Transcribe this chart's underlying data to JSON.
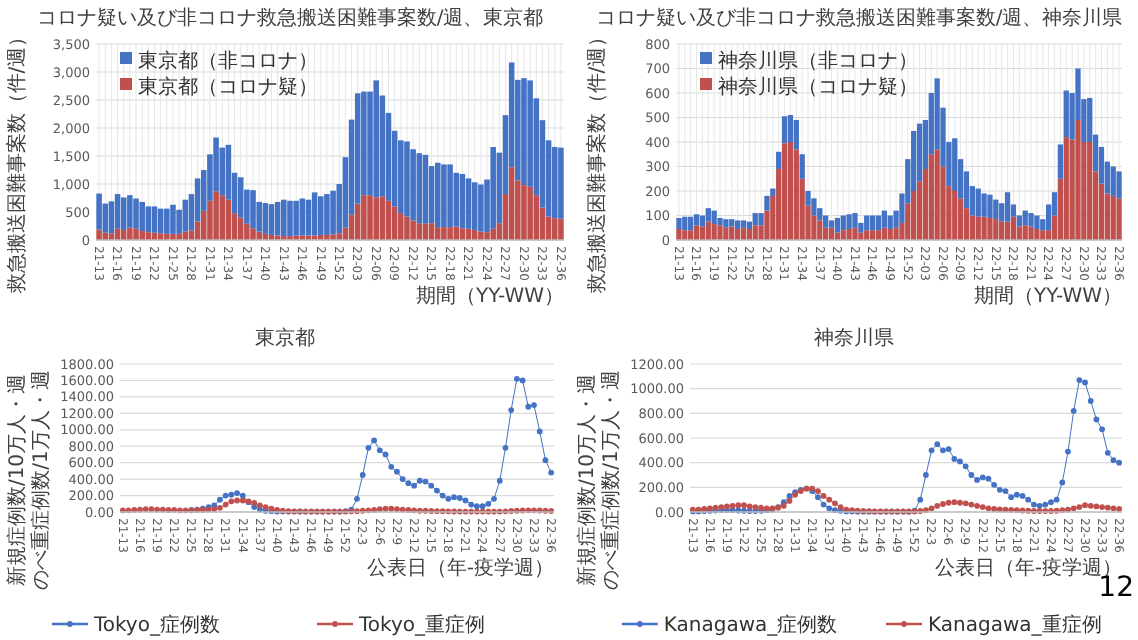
{
  "chart_data": [
    {
      "type": "bar",
      "title": "コロナ疑い及び非コロナ救急搬送困難事案数/週、東京都",
      "ylabel": "救急搬送困難事案数（件/週）",
      "xlabel": "期間（YY-WW）",
      "stacked": true,
      "grid": true,
      "legend": "top left",
      "categories": [
        "21-13",
        null,
        null,
        "21-16",
        null,
        null,
        "21-19",
        null,
        null,
        "21-22",
        null,
        null,
        "21-25",
        null,
        null,
        "21-28",
        null,
        null,
        "21-31",
        null,
        null,
        "21-34",
        null,
        null,
        "21-37",
        null,
        null,
        "21-40",
        null,
        null,
        "21-43",
        null,
        null,
        "21-46",
        null,
        null,
        "21-49",
        null,
        null,
        "21-52",
        null,
        null,
        "22-03",
        null,
        null,
        "22-06",
        null,
        null,
        "22-09",
        null,
        null,
        "22-12",
        null,
        null,
        "22-15",
        null,
        null,
        "22-18",
        null,
        null,
        "22-21",
        null,
        null,
        "22-24",
        null,
        null,
        "22-27",
        null,
        null,
        "22-30",
        null,
        null,
        "22-33",
        null,
        null,
        "22-36"
      ],
      "ylim": [
        0,
        3500
      ],
      "yticks": [
        0,
        {
          "value": 500,
          "label": "500"
        },
        {
          "value": 1000,
          "label": "1,000"
        },
        {
          "value": 1500,
          "label": "1,500"
        },
        {
          "value": 2000,
          "label": "2,000"
        },
        {
          "value": 2500,
          "label": "2,500"
        },
        {
          "value": 3000,
          "label": "3,000"
        },
        {
          "value": 3500,
          "label": "3,500"
        }
      ],
      "series": [
        {
          "name": "東京都（コロナ疑）",
          "color": "#c0504d",
          "values": [
            190,
            130,
            120,
            200,
            180,
            220,
            200,
            160,
            140,
            130,
            120,
            110,
            110,
            110,
            150,
            170,
            330,
            520,
            700,
            870,
            800,
            720,
            480,
            400,
            290,
            210,
            150,
            110,
            90,
            80,
            70,
            70,
            80,
            80,
            80,
            80,
            90,
            90,
            100,
            120,
            220,
            450,
            650,
            800,
            800,
            760,
            780,
            700,
            600,
            480,
            420,
            350,
            300,
            290,
            300,
            230,
            230,
            230,
            240,
            210,
            200,
            180,
            150,
            140,
            200,
            300,
            820,
            1300,
            1060,
            980,
            950,
            800,
            580,
            420,
            390,
            380
          ]
        },
        {
          "name": "東京都（非コロナ）",
          "color": "#4472c4",
          "values": [
            640,
            520,
            570,
            620,
            580,
            580,
            540,
            520,
            460,
            470,
            440,
            450,
            520,
            430,
            570,
            650,
            770,
            730,
            830,
            960,
            850,
            980,
            720,
            720,
            610,
            680,
            530,
            550,
            550,
            600,
            650,
            630,
            620,
            660,
            640,
            770,
            690,
            730,
            780,
            880,
            1260,
            1700,
            1970,
            1850,
            1850,
            2090,
            1800,
            1570,
            1350,
            1300,
            1340,
            1270,
            1250,
            1230,
            1020,
            1150,
            1120,
            1120,
            960,
            970,
            900,
            850,
            840,
            940,
            1460,
            1260,
            1410,
            1870,
            1800,
            1910,
            1900,
            1730,
            1560,
            1360,
            1270,
            1270
          ]
        }
      ]
    },
    {
      "type": "bar",
      "title": "コロナ疑い及び非コロナ救急搬送困難事案数/週、神奈川県",
      "ylabel": "救急搬送困難事案数（件/週）",
      "xlabel": "期間（YY-WW）",
      "stacked": true,
      "grid": true,
      "legend": "top left",
      "categories": [
        "21-13",
        null,
        null,
        "21-16",
        null,
        null,
        "21-19",
        null,
        null,
        "21-22",
        null,
        null,
        "21-25",
        null,
        null,
        "21-28",
        null,
        null,
        "21-31",
        null,
        null,
        "21-34",
        null,
        null,
        "21-37",
        null,
        null,
        "21-40",
        null,
        null,
        "21-43",
        null,
        null,
        "21-46",
        null,
        null,
        "21-49",
        null,
        null,
        "21-52",
        null,
        null,
        "22-03",
        null,
        null,
        "22-06",
        null,
        null,
        "22-09",
        null,
        null,
        "22-12",
        null,
        null,
        "22-15",
        null,
        null,
        "22-18",
        null,
        null,
        "22-21",
        null,
        null,
        "22-24",
        null,
        null,
        "22-27",
        null,
        null,
        "22-30",
        null,
        null,
        "22-33",
        null,
        null,
        "22-36"
      ],
      "ylim": [
        0,
        800
      ],
      "yticks": [
        0,
        100,
        200,
        300,
        400,
        500,
        600,
        700,
        800
      ],
      "series": [
        {
          "name": "神奈川県（コロナ疑）",
          "color": "#c0504d",
          "values": [
            45,
            40,
            40,
            60,
            55,
            75,
            65,
            60,
            50,
            55,
            45,
            50,
            45,
            60,
            60,
            120,
            180,
            290,
            395,
            400,
            370,
            250,
            140,
            100,
            80,
            50,
            50,
            30,
            40,
            45,
            50,
            30,
            40,
            40,
            40,
            50,
            45,
            50,
            70,
            150,
            200,
            240,
            290,
            350,
            370,
            300,
            220,
            200,
            170,
            130,
            100,
            95,
            95,
            90,
            85,
            75,
            75,
            95,
            55,
            60,
            55,
            45,
            40,
            40,
            100,
            250,
            420,
            410,
            490,
            400,
            400,
            280,
            230,
            190,
            180,
            170
          ]
        },
        {
          "name": "神奈川県（非コロナ）",
          "color": "#4472c4",
          "values": [
            45,
            55,
            55,
            45,
            45,
            55,
            55,
            30,
            35,
            30,
            35,
            30,
            30,
            50,
            50,
            60,
            30,
            70,
            110,
            110,
            120,
            100,
            60,
            70,
            50,
            50,
            30,
            60,
            60,
            60,
            60,
            40,
            60,
            60,
            60,
            70,
            55,
            70,
            120,
            180,
            245,
            235,
            200,
            250,
            290,
            240,
            180,
            215,
            160,
            150,
            120,
            115,
            95,
            95,
            80,
            75,
            120,
            50,
            45,
            60,
            55,
            55,
            45,
            105,
            95,
            140,
            190,
            190,
            210,
            175,
            180,
            150,
            150,
            130,
            120,
            110
          ]
        }
      ]
    },
    {
      "type": "line",
      "title": "東京都",
      "ylabel": "新規症例数/10万人・週のべ重症例数/1万人・週",
      "xlabel": "公表日（年-疫学週）",
      "grid": "y",
      "legend": "bottom",
      "marker": "circle",
      "categories": [
        "21-13",
        null,
        null,
        "21-16",
        null,
        null,
        "21-19",
        null,
        null,
        "21-22",
        null,
        null,
        "21-25",
        null,
        null,
        "21-28",
        null,
        null,
        "21-31",
        null,
        null,
        "21-34",
        null,
        null,
        "21-37",
        null,
        null,
        "21-40",
        null,
        null,
        "21-43",
        null,
        null,
        "21-46",
        null,
        null,
        "21-49",
        null,
        null,
        "21-52",
        null,
        null,
        "22-3",
        null,
        null,
        "22-6",
        null,
        null,
        "22-9",
        null,
        null,
        "22-12",
        null,
        null,
        "22-15",
        null,
        null,
        "22-18",
        null,
        null,
        "22-21",
        null,
        null,
        "22-24",
        null,
        null,
        "22-27",
        null,
        null,
        "22-30",
        null,
        null,
        "22-33",
        null,
        null,
        "22-36"
      ],
      "ylim": [
        0,
        1800
      ],
      "yticks": [
        {
          "value": 0,
          "label": "0.00"
        },
        {
          "value": 200,
          "label": "200.00"
        },
        {
          "value": 400,
          "label": "400.00"
        },
        {
          "value": 600,
          "label": "600.00"
        },
        {
          "value": 800,
          "label": "800.00"
        },
        {
          "value": 1000,
          "label": "1000.00"
        },
        {
          "value": 1200,
          "label": "1200.00"
        },
        {
          "value": 1400,
          "label": "1400.00"
        },
        {
          "value": 1600,
          "label": "1600.00"
        },
        {
          "value": 1800,
          "label": "1800.00"
        }
      ],
      "series": [
        {
          "name": "Tokyo_症例数",
          "color": "#4472c4",
          "values": [
            null,
            null,
            null,
            null,
            null,
            null,
            null,
            null,
            null,
            null,
            null,
            null,
            25,
            30,
            40,
            60,
            80,
            150,
            200,
            210,
            230,
            200,
            120,
            60,
            30,
            15,
            10,
            5,
            5,
            5,
            5,
            5,
            5,
            5,
            5,
            5,
            5,
            5,
            5,
            10,
            30,
            160,
            450,
            780,
            870,
            750,
            700,
            550,
            490,
            400,
            350,
            320,
            380,
            370,
            320,
            260,
            200,
            160,
            180,
            170,
            140,
            90,
            70,
            70,
            100,
            160,
            380,
            780,
            1240,
            1620,
            1600,
            1280,
            1300,
            980,
            630,
            480
          ]
        },
        {
          "name": "Tokyo_重症例",
          "color": "#c0504d",
          "values": [
            20,
            20,
            25,
            30,
            35,
            35,
            30,
            30,
            25,
            25,
            20,
            20,
            20,
            25,
            25,
            30,
            35,
            50,
            90,
            130,
            140,
            140,
            130,
            110,
            80,
            60,
            40,
            25,
            15,
            10,
            8,
            6,
            5,
            5,
            5,
            5,
            5,
            5,
            5,
            5,
            8,
            10,
            15,
            20,
            25,
            35,
            40,
            40,
            35,
            30,
            25,
            20,
            15,
            15,
            12,
            10,
            10,
            8,
            6,
            5,
            5,
            5,
            5,
            5,
            5,
            5,
            5,
            8,
            12,
            15,
            18,
            20,
            20,
            18,
            15,
            12
          ]
        }
      ]
    },
    {
      "type": "line",
      "title": "神奈川県",
      "ylabel": "新規症例数/10万人・週のべ重症例数/1万人・週",
      "xlabel": "公表日（年-疫学週）",
      "grid": "y",
      "legend": "bottom",
      "marker": "circle",
      "annotations": [
        "12"
      ],
      "categories": [
        "21-13",
        null,
        null,
        "21-16",
        null,
        null,
        "21-19",
        null,
        null,
        "21-22",
        null,
        null,
        "21-25",
        null,
        null,
        "21-28",
        null,
        null,
        "21-31",
        null,
        null,
        "21-34",
        null,
        null,
        "21-37",
        null,
        null,
        "21-40",
        null,
        null,
        "21-43",
        null,
        null,
        "21-46",
        null,
        null,
        "21-49",
        null,
        null,
        "21-52",
        null,
        null,
        "22-3",
        null,
        null,
        "22-6",
        null,
        null,
        "22-9",
        null,
        null,
        "22-12",
        null,
        null,
        "22-15",
        null,
        null,
        "22-18",
        null,
        null,
        "22-21",
        null,
        null,
        "22-24",
        null,
        null,
        "22-27",
        null,
        null,
        "22-30",
        null,
        null,
        "22-33",
        null,
        null,
        "22-36"
      ],
      "ylim": [
        0,
        1200
      ],
      "yticks": [
        {
          "value": 0,
          "label": "0.00"
        },
        {
          "value": 200,
          "label": "200.00"
        },
        {
          "value": 400,
          "label": "400.00"
        },
        {
          "value": 600,
          "label": "600.00"
        },
        {
          "value": 800,
          "label": "800.00"
        },
        {
          "value": 1000,
          "label": "1000.00"
        },
        {
          "value": 1200,
          "label": "1200.00"
        }
      ],
      "series": [
        {
          "name": "Kanagawa_症例数",
          "color": "#4472c4",
          "values": [
            5,
            5,
            8,
            10,
            12,
            15,
            15,
            15,
            12,
            10,
            8,
            8,
            10,
            15,
            20,
            40,
            80,
            130,
            160,
            180,
            190,
            170,
            120,
            60,
            30,
            15,
            10,
            5,
            5,
            3,
            3,
            3,
            3,
            3,
            3,
            3,
            3,
            3,
            3,
            10,
            100,
            300,
            500,
            550,
            500,
            510,
            430,
            410,
            370,
            300,
            260,
            280,
            270,
            220,
            180,
            170,
            120,
            140,
            130,
            100,
            60,
            50,
            60,
            80,
            100,
            240,
            490,
            820,
            1070,
            1050,
            900,
            750,
            670,
            480,
            420,
            400
          ]
        },
        {
          "name": "Kanagawa_重症例",
          "color": "#c0504d",
          "values": [
            20,
            20,
            25,
            30,
            35,
            40,
            45,
            50,
            55,
            55,
            45,
            40,
            35,
            30,
            30,
            35,
            50,
            90,
            140,
            170,
            190,
            190,
            170,
            130,
            100,
            70,
            40,
            20,
            15,
            10,
            8,
            6,
            5,
            5,
            5,
            5,
            5,
            5,
            5,
            5,
            8,
            15,
            30,
            50,
            65,
            75,
            80,
            75,
            70,
            60,
            50,
            40,
            30,
            25,
            22,
            20,
            18,
            15,
            12,
            10,
            8,
            8,
            8,
            8,
            10,
            15,
            20,
            30,
            40,
            55,
            50,
            45,
            40,
            35,
            30,
            25
          ]
        }
      ]
    }
  ]
}
